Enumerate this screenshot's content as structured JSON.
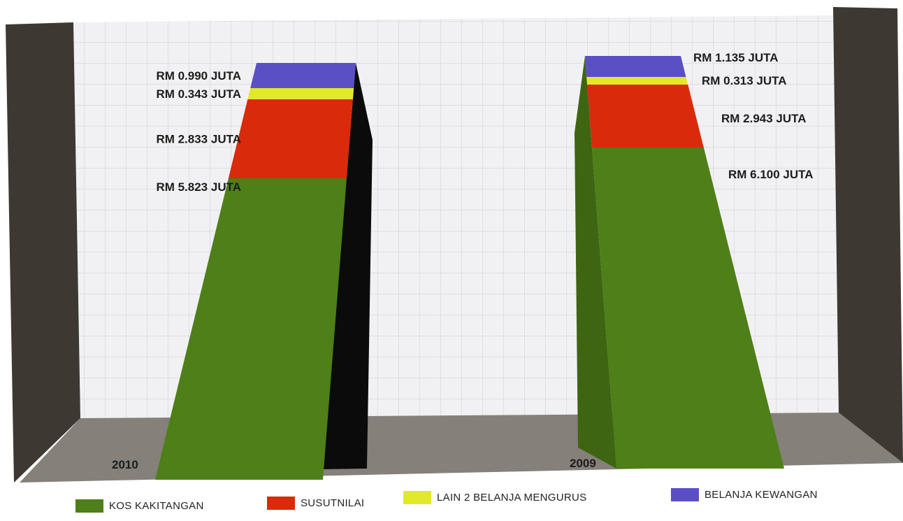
{
  "chart_data": {
    "type": "bar",
    "stacked": true,
    "style": "3d-perspective",
    "title": "",
    "xlabel": "",
    "ylabel": "",
    "categories": [
      "2010",
      "2009"
    ],
    "series": [
      {
        "name": "KOS KAKITANGAN",
        "color": "#4e7f18",
        "values": [
          5.823,
          6.1
        ],
        "labels": [
          "RM 5.823 JUTA",
          "RM 6.100 JUTA"
        ]
      },
      {
        "name": "SUSUTNILAI",
        "color": "#d92a0c",
        "values": [
          2.833,
          2.943
        ],
        "labels": [
          "RM 2.833 JUTA",
          "RM 2.943 JUTA"
        ]
      },
      {
        "name": "LAIN 2 BELANJA MENGURUS",
        "color": "#e2e82a",
        "values": [
          0.343,
          0.313
        ],
        "labels": [
          "RM 0.343 JUTA",
          "RM 0.313 JUTA"
        ]
      },
      {
        "name": "BELANJA KEWANGAN",
        "color": "#5b4fc6",
        "values": [
          0.99,
          1.135
        ],
        "labels": [
          "RM 0.990 JUTA",
          "RM 1.135 JUTA"
        ]
      }
    ],
    "grid": true,
    "legend_position": "bottom"
  }
}
